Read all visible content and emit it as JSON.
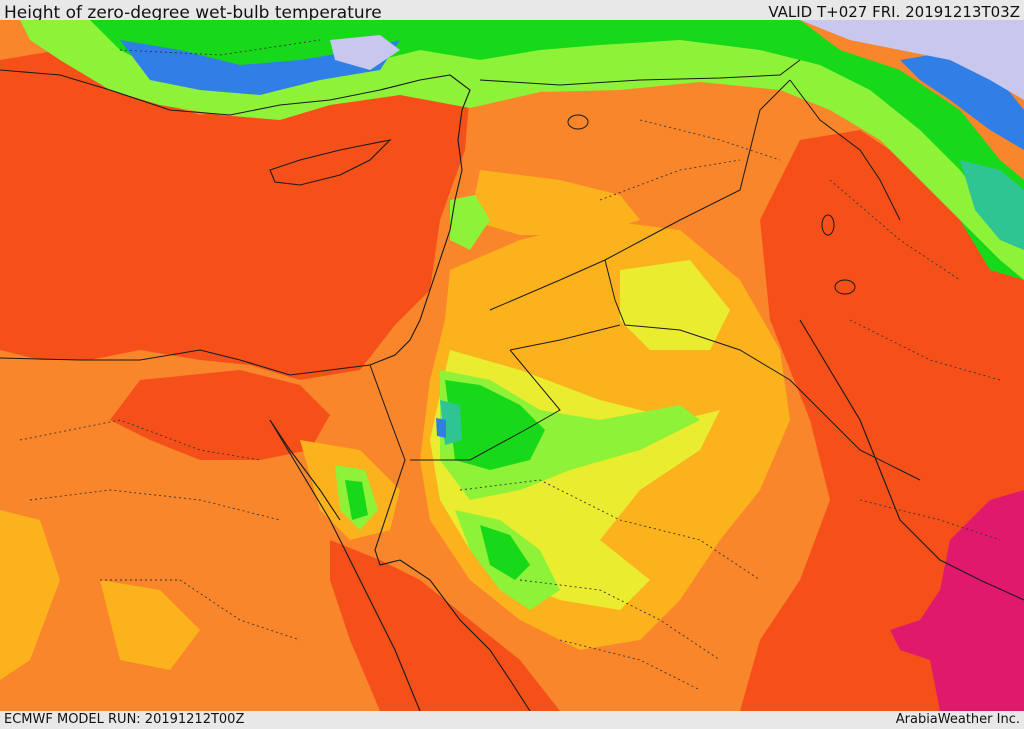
{
  "header": {
    "title": "Height of zero-degree wet-bulb temperature",
    "valid": "VALID T+027 FRI. 20191213T03Z"
  },
  "footer": {
    "model_run": "ECMWF MODEL RUN: 20191212T00Z",
    "credit": "ArabiaWeather Inc."
  },
  "palette": {
    "deep_orange": "#f5501a",
    "orange": "#f9862b",
    "amber": "#fbb21c",
    "yellow": "#e9ec2f",
    "light_green": "#8ef238",
    "green": "#18d81a",
    "teal": "#2fc592",
    "blue": "#2f7fe6",
    "lavender": "#c8c8ee",
    "magenta": "#e0196d",
    "border_color": "#1a1a1a"
  }
}
